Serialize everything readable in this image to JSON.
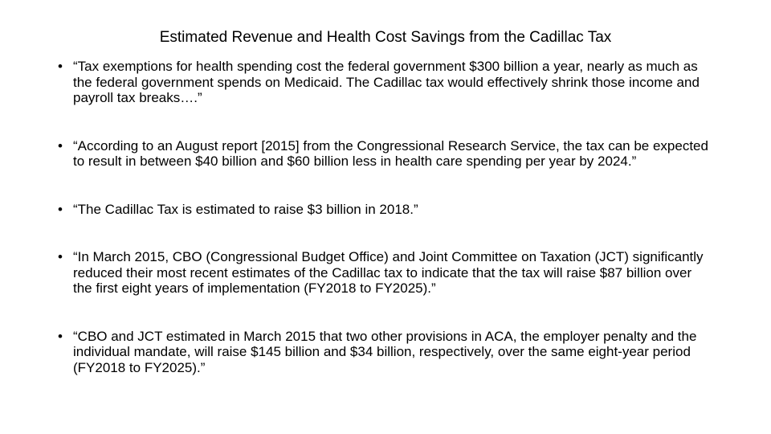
{
  "title": "Estimated Revenue and Health Cost Savings from the Cadillac Tax",
  "bullet_symbol": "•",
  "bullets": [
    "“Tax exemptions for health spending cost the federal government $300 billion a year, nearly as much as the federal government spends on Medicaid. The Cadillac tax would effectively shrink those income and payroll tax breaks….”",
    "“According to an August report [2015] from the Congressional Research Service, the tax can be expected to result in between $40 billion and $60 billion less in health care spending per year by 2024.”",
    "“The Cadillac Tax is estimated to raise $3 billion in 2018.”",
    "“In March 2015, CBO (Congressional Budget Office) and Joint Committee on Taxation (JCT) significantly reduced their most recent estimates of the Cadillac tax to indicate that the tax will raise $87 billion over the first eight years of implementation (FY2018 to FY2025).”",
    "“CBO and JCT estimated in March 2015 that two other provisions in ACA, the employer penalty and the individual mandate, will raise $145 billion and $34 billion, respectively, over the same eight-year period (FY2018 to FY2025).”"
  ]
}
